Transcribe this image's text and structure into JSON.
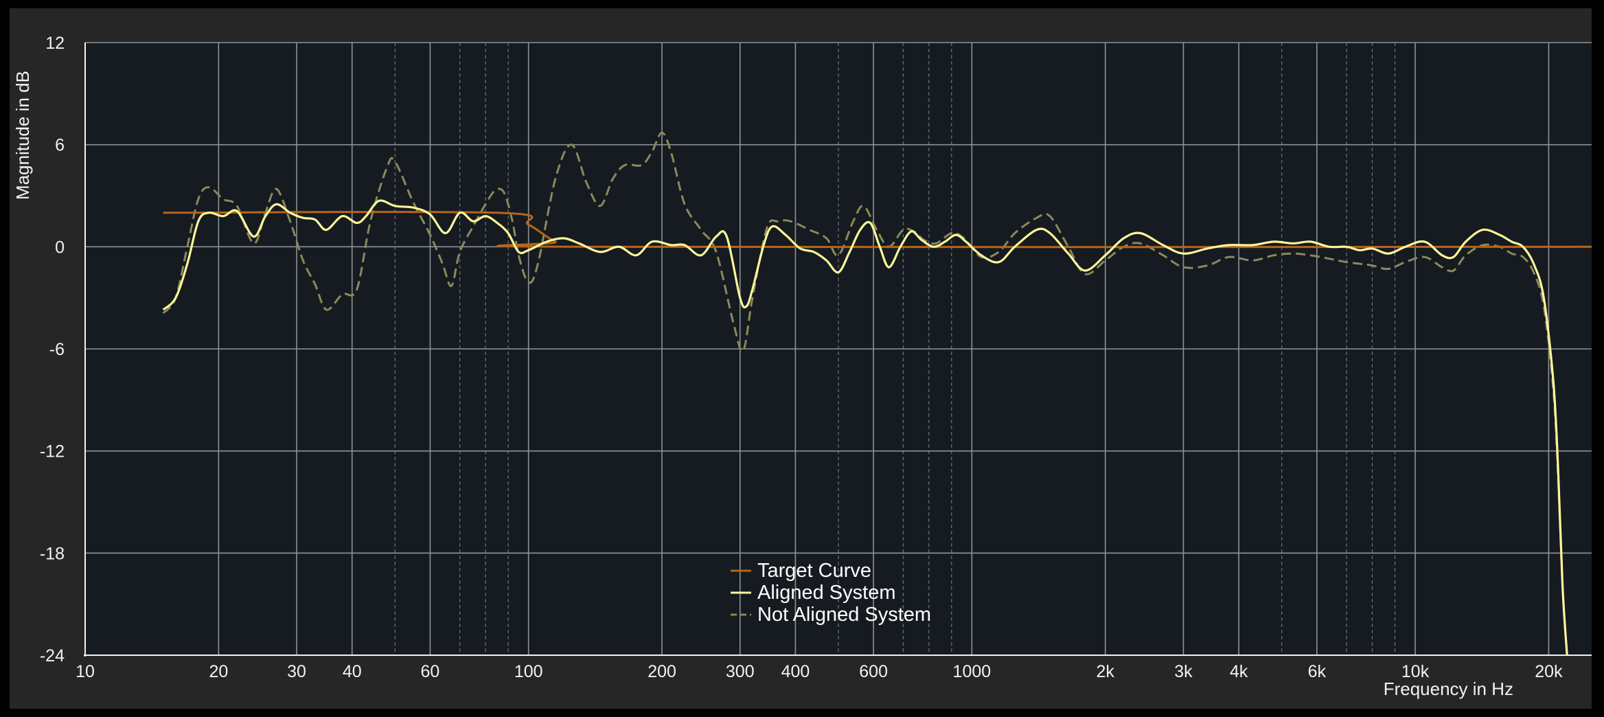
{
  "chart_data": {
    "type": "line",
    "title": "",
    "xlabel": "Frequency in Hz",
    "ylabel": "Magnitude in dB",
    "x_scale": "log",
    "xlim": [
      10,
      25000
    ],
    "ylim": [
      -24,
      12
    ],
    "grid": true,
    "legend_position": "bottom-center",
    "x_ticks": [
      {
        "value": 10,
        "label": "10"
      },
      {
        "value": 20,
        "label": "20"
      },
      {
        "value": 30,
        "label": "30"
      },
      {
        "value": 40,
        "label": "40"
      },
      {
        "value": 60,
        "label": "60"
      },
      {
        "value": 100,
        "label": "100"
      },
      {
        "value": 200,
        "label": "200"
      },
      {
        "value": 300,
        "label": "300"
      },
      {
        "value": 400,
        "label": "400"
      },
      {
        "value": 600,
        "label": "600"
      },
      {
        "value": 1000,
        "label": "1000"
      },
      {
        "value": 2000,
        "label": "2k"
      },
      {
        "value": 3000,
        "label": "3k"
      },
      {
        "value": 4000,
        "label": "4k"
      },
      {
        "value": 6000,
        "label": "6k"
      },
      {
        "value": 10000,
        "label": "10k"
      },
      {
        "value": 20000,
        "label": "20k"
      }
    ],
    "x_major_grid": [
      20,
      30,
      40,
      60,
      100,
      200,
      300,
      400,
      600,
      1000,
      2000,
      3000,
      4000,
      6000,
      10000,
      20000
    ],
    "x_minor_grid": [
      50,
      70,
      80,
      90,
      500,
      700,
      800,
      900,
      5000,
      7000,
      8000,
      9000
    ],
    "y_ticks": [
      12,
      6,
      0,
      -6,
      -12,
      -18,
      -24
    ],
    "series": [
      {
        "name": "Target Curve",
        "color": "#b5651d",
        "dashed": false,
        "points": [
          [
            15,
            2
          ],
          [
            85,
            2
          ],
          [
            100,
            1.3
          ],
          [
            115,
            0.3
          ],
          [
            130,
            0
          ],
          [
            25000,
            0
          ]
        ]
      },
      {
        "name": "Aligned System",
        "color": "#fff59a",
        "dashed": false,
        "points": [
          [
            15,
            -3.7
          ],
          [
            16,
            -3
          ],
          [
            17,
            -1
          ],
          [
            18,
            1.5
          ],
          [
            19,
            2
          ],
          [
            20.5,
            1.8
          ],
          [
            22,
            2.1
          ],
          [
            24,
            0.6
          ],
          [
            25.5,
            1.8
          ],
          [
            27,
            2.5
          ],
          [
            29,
            2
          ],
          [
            31,
            1.7
          ],
          [
            33,
            1.6
          ],
          [
            35,
            1
          ],
          [
            38,
            1.8
          ],
          [
            41,
            1.4
          ],
          [
            43,
            1.8
          ],
          [
            46,
            2.7
          ],
          [
            50,
            2.4
          ],
          [
            55,
            2.3
          ],
          [
            60,
            1.9
          ],
          [
            65,
            0.8
          ],
          [
            70,
            2
          ],
          [
            75,
            1.5
          ],
          [
            80,
            1.8
          ],
          [
            85,
            1.4
          ],
          [
            90,
            0.8
          ],
          [
            95,
            -0.3
          ],
          [
            100,
            -0.2
          ],
          [
            110,
            0.3
          ],
          [
            120,
            0.5
          ],
          [
            130,
            0.2
          ],
          [
            145,
            -0.3
          ],
          [
            160,
            0
          ],
          [
            175,
            -0.5
          ],
          [
            190,
            0.3
          ],
          [
            210,
            0.1
          ],
          [
            225,
            0.1
          ],
          [
            245,
            -0.5
          ],
          [
            265,
            0.6
          ],
          [
            280,
            0.6
          ],
          [
            300,
            -3
          ],
          [
            310,
            -3.5
          ],
          [
            320,
            -2.5
          ],
          [
            340,
            0.2
          ],
          [
            355,
            1.2
          ],
          [
            380,
            0.7
          ],
          [
            410,
            -0.1
          ],
          [
            440,
            -0.3
          ],
          [
            470,
            -0.8
          ],
          [
            500,
            -1.5
          ],
          [
            530,
            -0.3
          ],
          [
            560,
            1
          ],
          [
            590,
            1.4
          ],
          [
            620,
            0
          ],
          [
            650,
            -1.2
          ],
          [
            690,
            0
          ],
          [
            730,
            0.9
          ],
          [
            770,
            0.4
          ],
          [
            820,
            0
          ],
          [
            870,
            0.3
          ],
          [
            920,
            0.7
          ],
          [
            970,
            0.3
          ],
          [
            1050,
            -0.5
          ],
          [
            1150,
            -0.9
          ],
          [
            1250,
            0
          ],
          [
            1400,
            1
          ],
          [
            1500,
            0.8
          ],
          [
            1650,
            -0.4
          ],
          [
            1800,
            -1.4
          ],
          [
            2000,
            -0.5
          ],
          [
            2200,
            0.5
          ],
          [
            2400,
            0.8
          ],
          [
            2700,
            0.1
          ],
          [
            3000,
            -0.4
          ],
          [
            3400,
            -0.1
          ],
          [
            3800,
            0.1
          ],
          [
            4300,
            0.1
          ],
          [
            4800,
            0.3
          ],
          [
            5300,
            0.2
          ],
          [
            5800,
            0.3
          ],
          [
            6400,
            0
          ],
          [
            7000,
            0
          ],
          [
            7500,
            -0.2
          ],
          [
            8000,
            -0.1
          ],
          [
            8700,
            -0.4
          ],
          [
            9500,
            0
          ],
          [
            10500,
            0.3
          ],
          [
            11500,
            -0.5
          ],
          [
            12200,
            -0.6
          ],
          [
            13000,
            0.3
          ],
          [
            14200,
            1
          ],
          [
            15500,
            0.7
          ],
          [
            16500,
            0.3
          ],
          [
            17500,
            0
          ],
          [
            18500,
            -1
          ],
          [
            19500,
            -3
          ],
          [
            20500,
            -8
          ],
          [
            21000,
            -13
          ],
          [
            21500,
            -20
          ],
          [
            22000,
            -24
          ]
        ]
      },
      {
        "name": "Not Aligned System",
        "color": "#8a8a5a",
        "dashed": true,
        "points": [
          [
            15,
            -3.9
          ],
          [
            16,
            -3
          ],
          [
            17,
            0
          ],
          [
            18,
            2.8
          ],
          [
            19,
            3.5
          ],
          [
            20.5,
            2.8
          ],
          [
            22,
            2.4
          ],
          [
            24,
            0.2
          ],
          [
            25.5,
            2
          ],
          [
            27,
            3.4
          ],
          [
            29,
            1.5
          ],
          [
            31,
            -0.8
          ],
          [
            33,
            -2.2
          ],
          [
            35,
            -3.7
          ],
          [
            38,
            -2.8
          ],
          [
            41,
            -2.5
          ],
          [
            44,
            1.5
          ],
          [
            48,
            4.7
          ],
          [
            50,
            5
          ],
          [
            55,
            2.6
          ],
          [
            60,
            0.7
          ],
          [
            64,
            -1
          ],
          [
            67,
            -2.3
          ],
          [
            70,
            -0.3
          ],
          [
            75,
            1.2
          ],
          [
            80,
            2.5
          ],
          [
            84,
            3.3
          ],
          [
            88,
            3.2
          ],
          [
            92,
            1.5
          ],
          [
            95,
            -0.5
          ],
          [
            100,
            -2.1
          ],
          [
            105,
            -1
          ],
          [
            115,
            4
          ],
          [
            125,
            6
          ],
          [
            135,
            3.8
          ],
          [
            145,
            2.4
          ],
          [
            155,
            4
          ],
          [
            165,
            4.8
          ],
          [
            180,
            4.8
          ],
          [
            190,
            5.6
          ],
          [
            200,
            6.7
          ],
          [
            210,
            5.5
          ],
          [
            225,
            2.5
          ],
          [
            245,
            1
          ],
          [
            265,
            -0.3
          ],
          [
            290,
            -4.5
          ],
          [
            305,
            -6.1
          ],
          [
            320,
            -3
          ],
          [
            345,
            1.1
          ],
          [
            365,
            1.5
          ],
          [
            390,
            1.5
          ],
          [
            430,
            1
          ],
          [
            470,
            0.5
          ],
          [
            500,
            -0.5
          ],
          [
            540,
            1.5
          ],
          [
            570,
            2.4
          ],
          [
            610,
            1
          ],
          [
            650,
            0
          ],
          [
            700,
            1
          ],
          [
            740,
            0.9
          ],
          [
            780,
            0.4
          ],
          [
            830,
            0.2
          ],
          [
            900,
            0.8
          ],
          [
            960,
            0.5
          ],
          [
            1050,
            -0.6
          ],
          [
            1150,
            -0.3
          ],
          [
            1250,
            0.8
          ],
          [
            1400,
            1.7
          ],
          [
            1500,
            1.8
          ],
          [
            1650,
            0
          ],
          [
            1800,
            -1.6
          ],
          [
            2000,
            -0.8
          ],
          [
            2200,
            0
          ],
          [
            2400,
            0.2
          ],
          [
            2700,
            -0.5
          ],
          [
            3000,
            -1.2
          ],
          [
            3400,
            -1.1
          ],
          [
            3800,
            -0.6
          ],
          [
            4300,
            -0.8
          ],
          [
            4800,
            -0.5
          ],
          [
            5300,
            -0.4
          ],
          [
            5800,
            -0.5
          ],
          [
            6400,
            -0.7
          ],
          [
            7000,
            -0.9
          ],
          [
            7500,
            -1
          ],
          [
            8000,
            -1.1
          ],
          [
            8700,
            -1.3
          ],
          [
            9500,
            -0.9
          ],
          [
            10500,
            -0.6
          ],
          [
            11500,
            -1.2
          ],
          [
            12200,
            -1.4
          ],
          [
            13000,
            -0.5
          ],
          [
            14200,
            0.1
          ],
          [
            15500,
            0
          ],
          [
            16500,
            -0.4
          ],
          [
            17500,
            -0.6
          ],
          [
            18500,
            -1.5
          ],
          [
            19500,
            -3.5
          ],
          [
            20500,
            -8.5
          ],
          [
            21000,
            -13.5
          ],
          [
            21500,
            -20
          ],
          [
            22000,
            -24
          ]
        ]
      }
    ]
  }
}
